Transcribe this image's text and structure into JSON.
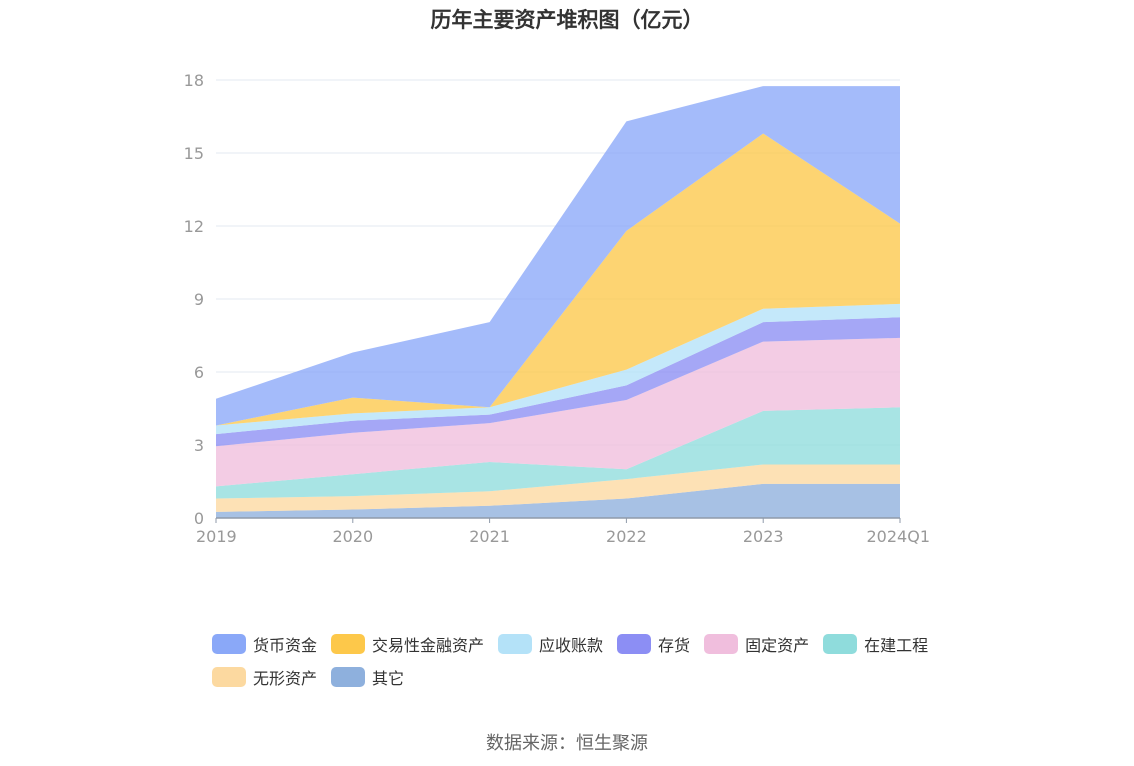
{
  "chart_data": {
    "type": "area",
    "stacked": true,
    "title": "历年主要资产堆积图（亿元）",
    "x": [
      "2019",
      "2020",
      "2021",
      "2022",
      "2023",
      "2024Q1"
    ],
    "ylim": [
      0,
      18
    ],
    "yticks": [
      0,
      3,
      6,
      9,
      12,
      15,
      18
    ],
    "grid": true,
    "legend_position": "bottom",
    "series": [
      {
        "name": "其它",
        "color": "#8eb0dd",
        "values": [
          0.25,
          0.35,
          0.5,
          0.8,
          1.4,
          1.4
        ]
      },
      {
        "name": "无形资产",
        "color": "#fcd9a0",
        "values": [
          0.55,
          0.55,
          0.6,
          0.8,
          0.8,
          0.8
        ]
      },
      {
        "name": "在建工程",
        "color": "#8fdcdc",
        "values": [
          0.5,
          0.9,
          1.2,
          0.4,
          2.2,
          2.35
        ]
      },
      {
        "name": "固定资产",
        "color": "#f0bedd",
        "values": [
          1.65,
          1.7,
          1.6,
          2.85,
          2.85,
          2.85
        ]
      },
      {
        "name": "存货",
        "color": "#8c8ef4",
        "values": [
          0.5,
          0.5,
          0.35,
          0.6,
          0.8,
          0.85
        ]
      },
      {
        "name": "应收账款",
        "color": "#b4e2f8",
        "values": [
          0.35,
          0.3,
          0.3,
          0.65,
          0.55,
          0.55
        ]
      },
      {
        "name": "交易性金融资产",
        "color": "#fdc84a",
        "values": [
          0.0,
          0.65,
          0.0,
          5.7,
          7.2,
          3.3
        ]
      },
      {
        "name": "货币资金",
        "color": "#8aa8f8",
        "values": [
          1.1,
          1.85,
          3.5,
          4.5,
          1.95,
          5.65
        ]
      }
    ],
    "legend_order": [
      "货币资金",
      "交易性金融资产",
      "应收账款",
      "存货",
      "固定资产",
      "在建工程",
      "无形资产",
      "其它"
    ]
  },
  "source": "数据来源：恒生聚源"
}
